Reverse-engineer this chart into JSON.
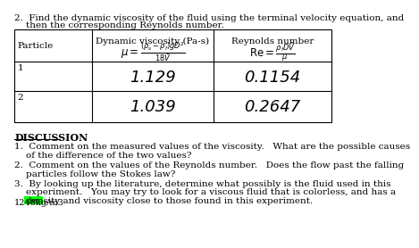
{
  "title_line1": "2.  Find the dynamic viscosity of the fluid using the terminal velocity equation, and",
  "title_line2": "    then the corresponding Reynolds number.",
  "col_headers": [
    "Particle",
    "Dynamic viscosity (Pa-s)",
    "Reynolds number"
  ],
  "formula_viscosity": "$\\mu = \\frac{(\\rho_s - \\rho_f)gD^2}{18\\bar{V}}$",
  "formula_reynolds": "$\\mathrm{Re} = \\frac{\\rho_f D\\bar{V}}{\\mu}$",
  "row1": [
    "1",
    "1.129",
    "0.1154"
  ],
  "row2": [
    "2",
    "1.039",
    "0.2647"
  ],
  "discussion_title": "DISCUSSION",
  "discussion_items": [
    "1.  Comment on the measured values of the viscosity.   What are the possible causes\n    of the difference of the two values?",
    "2.  Comment on the values of the Reynolds number.   Does the flow past the falling\n    particles follow the Stokes law?",
    "3.  By looking up the literature, determine what possibly is the fluid used in this\n    experiment.   You may try to look for a viscous fluid that is colorless, and has a\n    density and viscosity close to those found in this experiment."
  ],
  "highlight_color": "#00ff00",
  "footnote": "1248kg/m3",
  "bg_color": "#ffffff",
  "text_color": "#000000",
  "font_size": 7.5
}
